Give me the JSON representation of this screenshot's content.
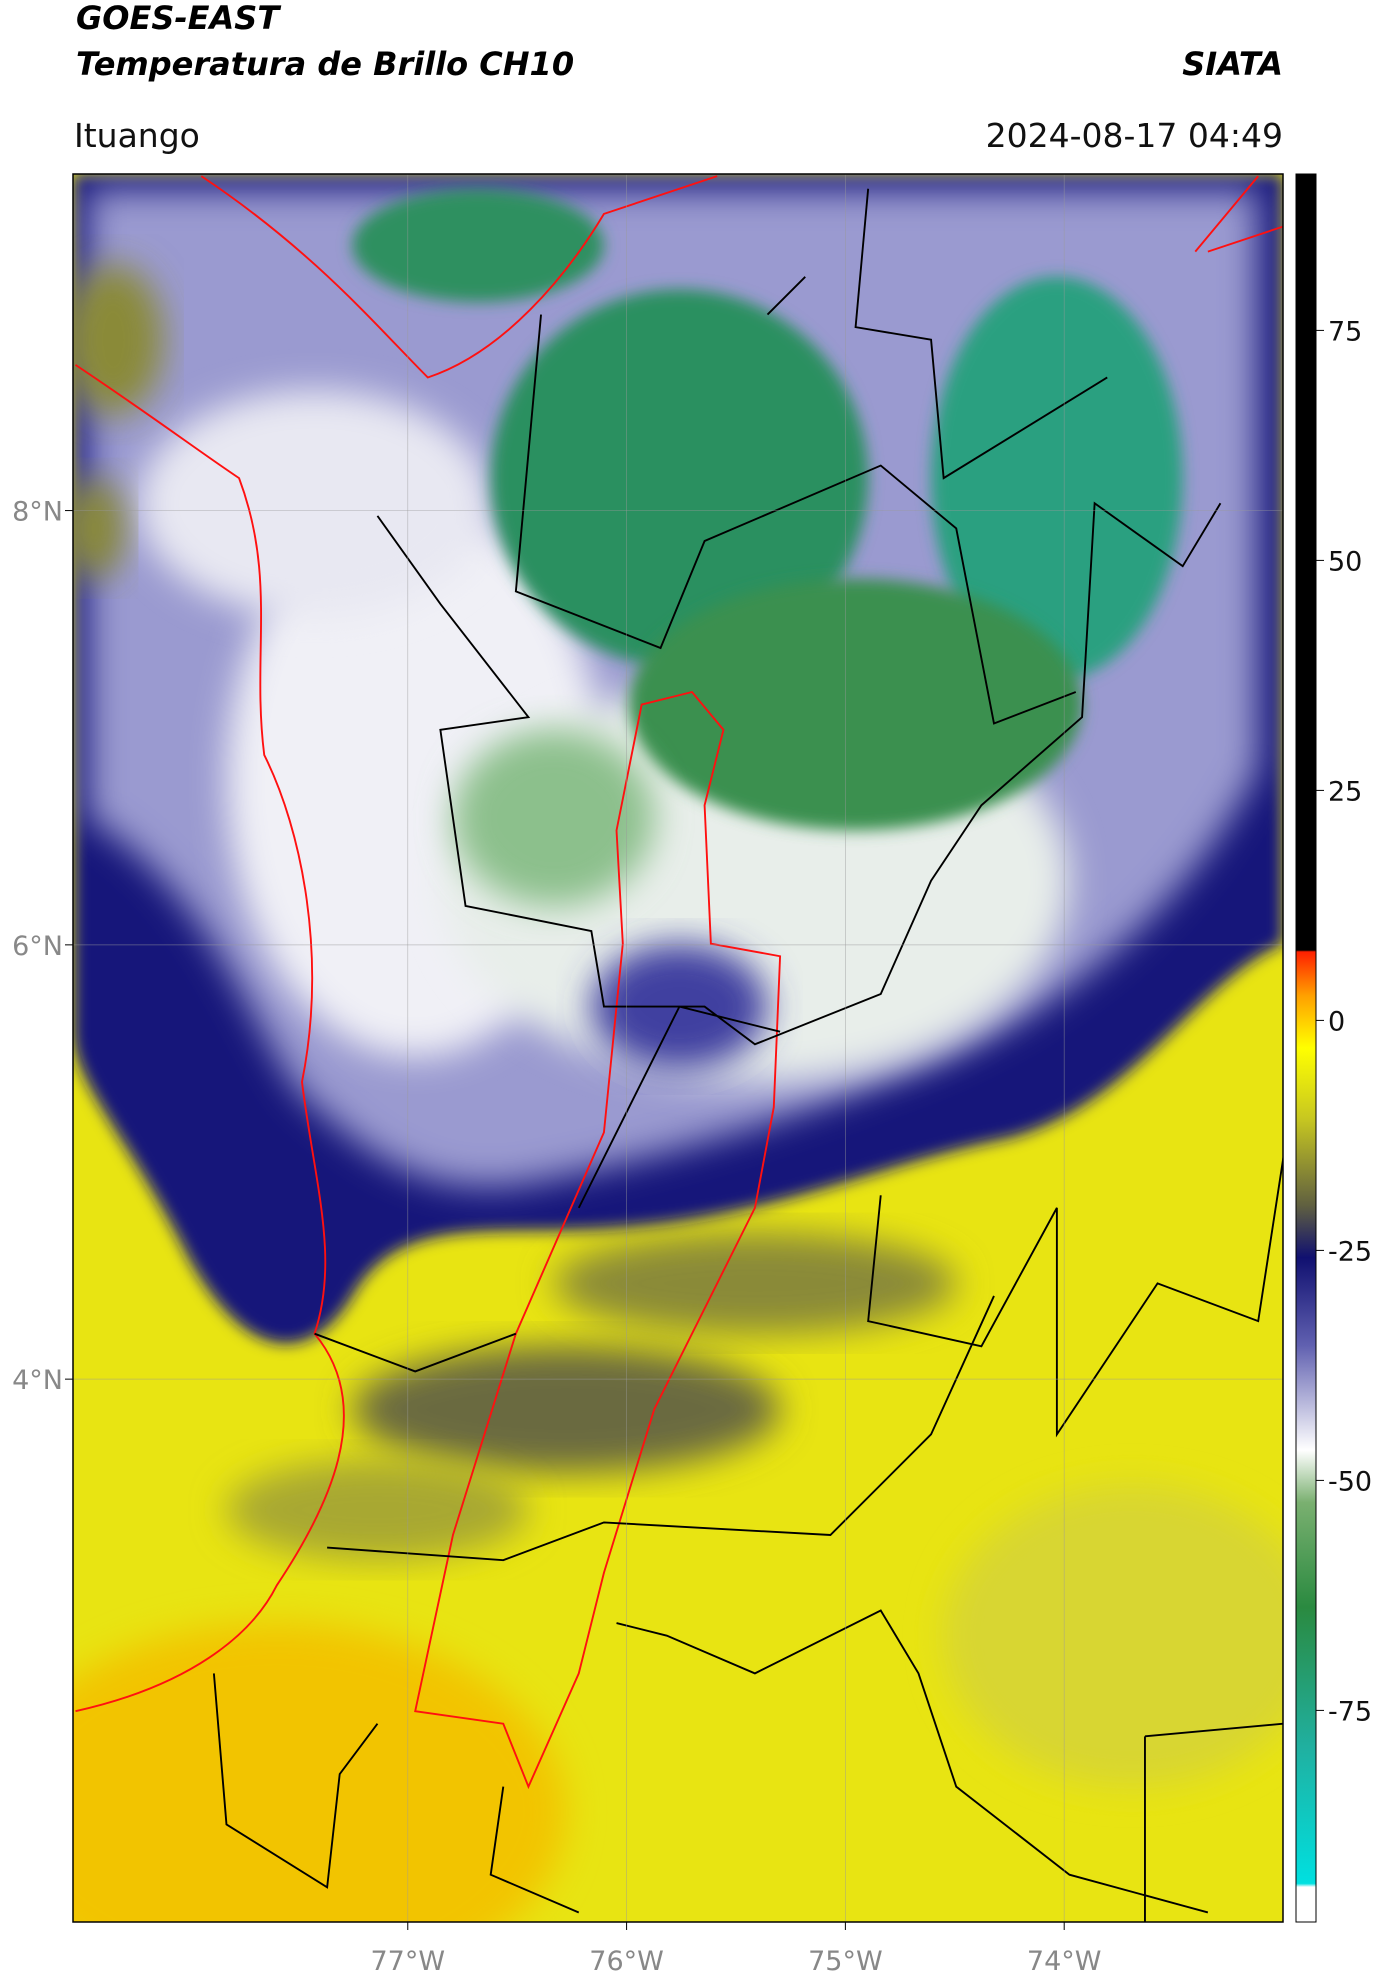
{
  "header": {
    "title": "GOES-EAST",
    "subtitle": "Temperatura de Brillo CH10",
    "agency": "SIATA",
    "location": "Ituango",
    "datetime": "2024-08-17 04:49"
  },
  "map": {
    "xlim": [
      -78.53,
      -73.0
    ],
    "ylim": [
      1.5,
      9.55
    ],
    "xticks": [
      {
        "value": -77,
        "label": "77°W"
      },
      {
        "value": -76,
        "label": "76°W"
      },
      {
        "value": -75,
        "label": "75°W"
      },
      {
        "value": -74,
        "label": "74°W"
      }
    ],
    "yticks": [
      {
        "value": 8,
        "label": "8°N"
      },
      {
        "value": 6,
        "label": "6°N"
      },
      {
        "value": 4,
        "label": "4°N"
      }
    ]
  },
  "colorbar": {
    "lim": [
      -98,
      92
    ],
    "ticks": [
      75,
      50,
      25,
      0,
      -25,
      -50,
      -75
    ]
  }
}
